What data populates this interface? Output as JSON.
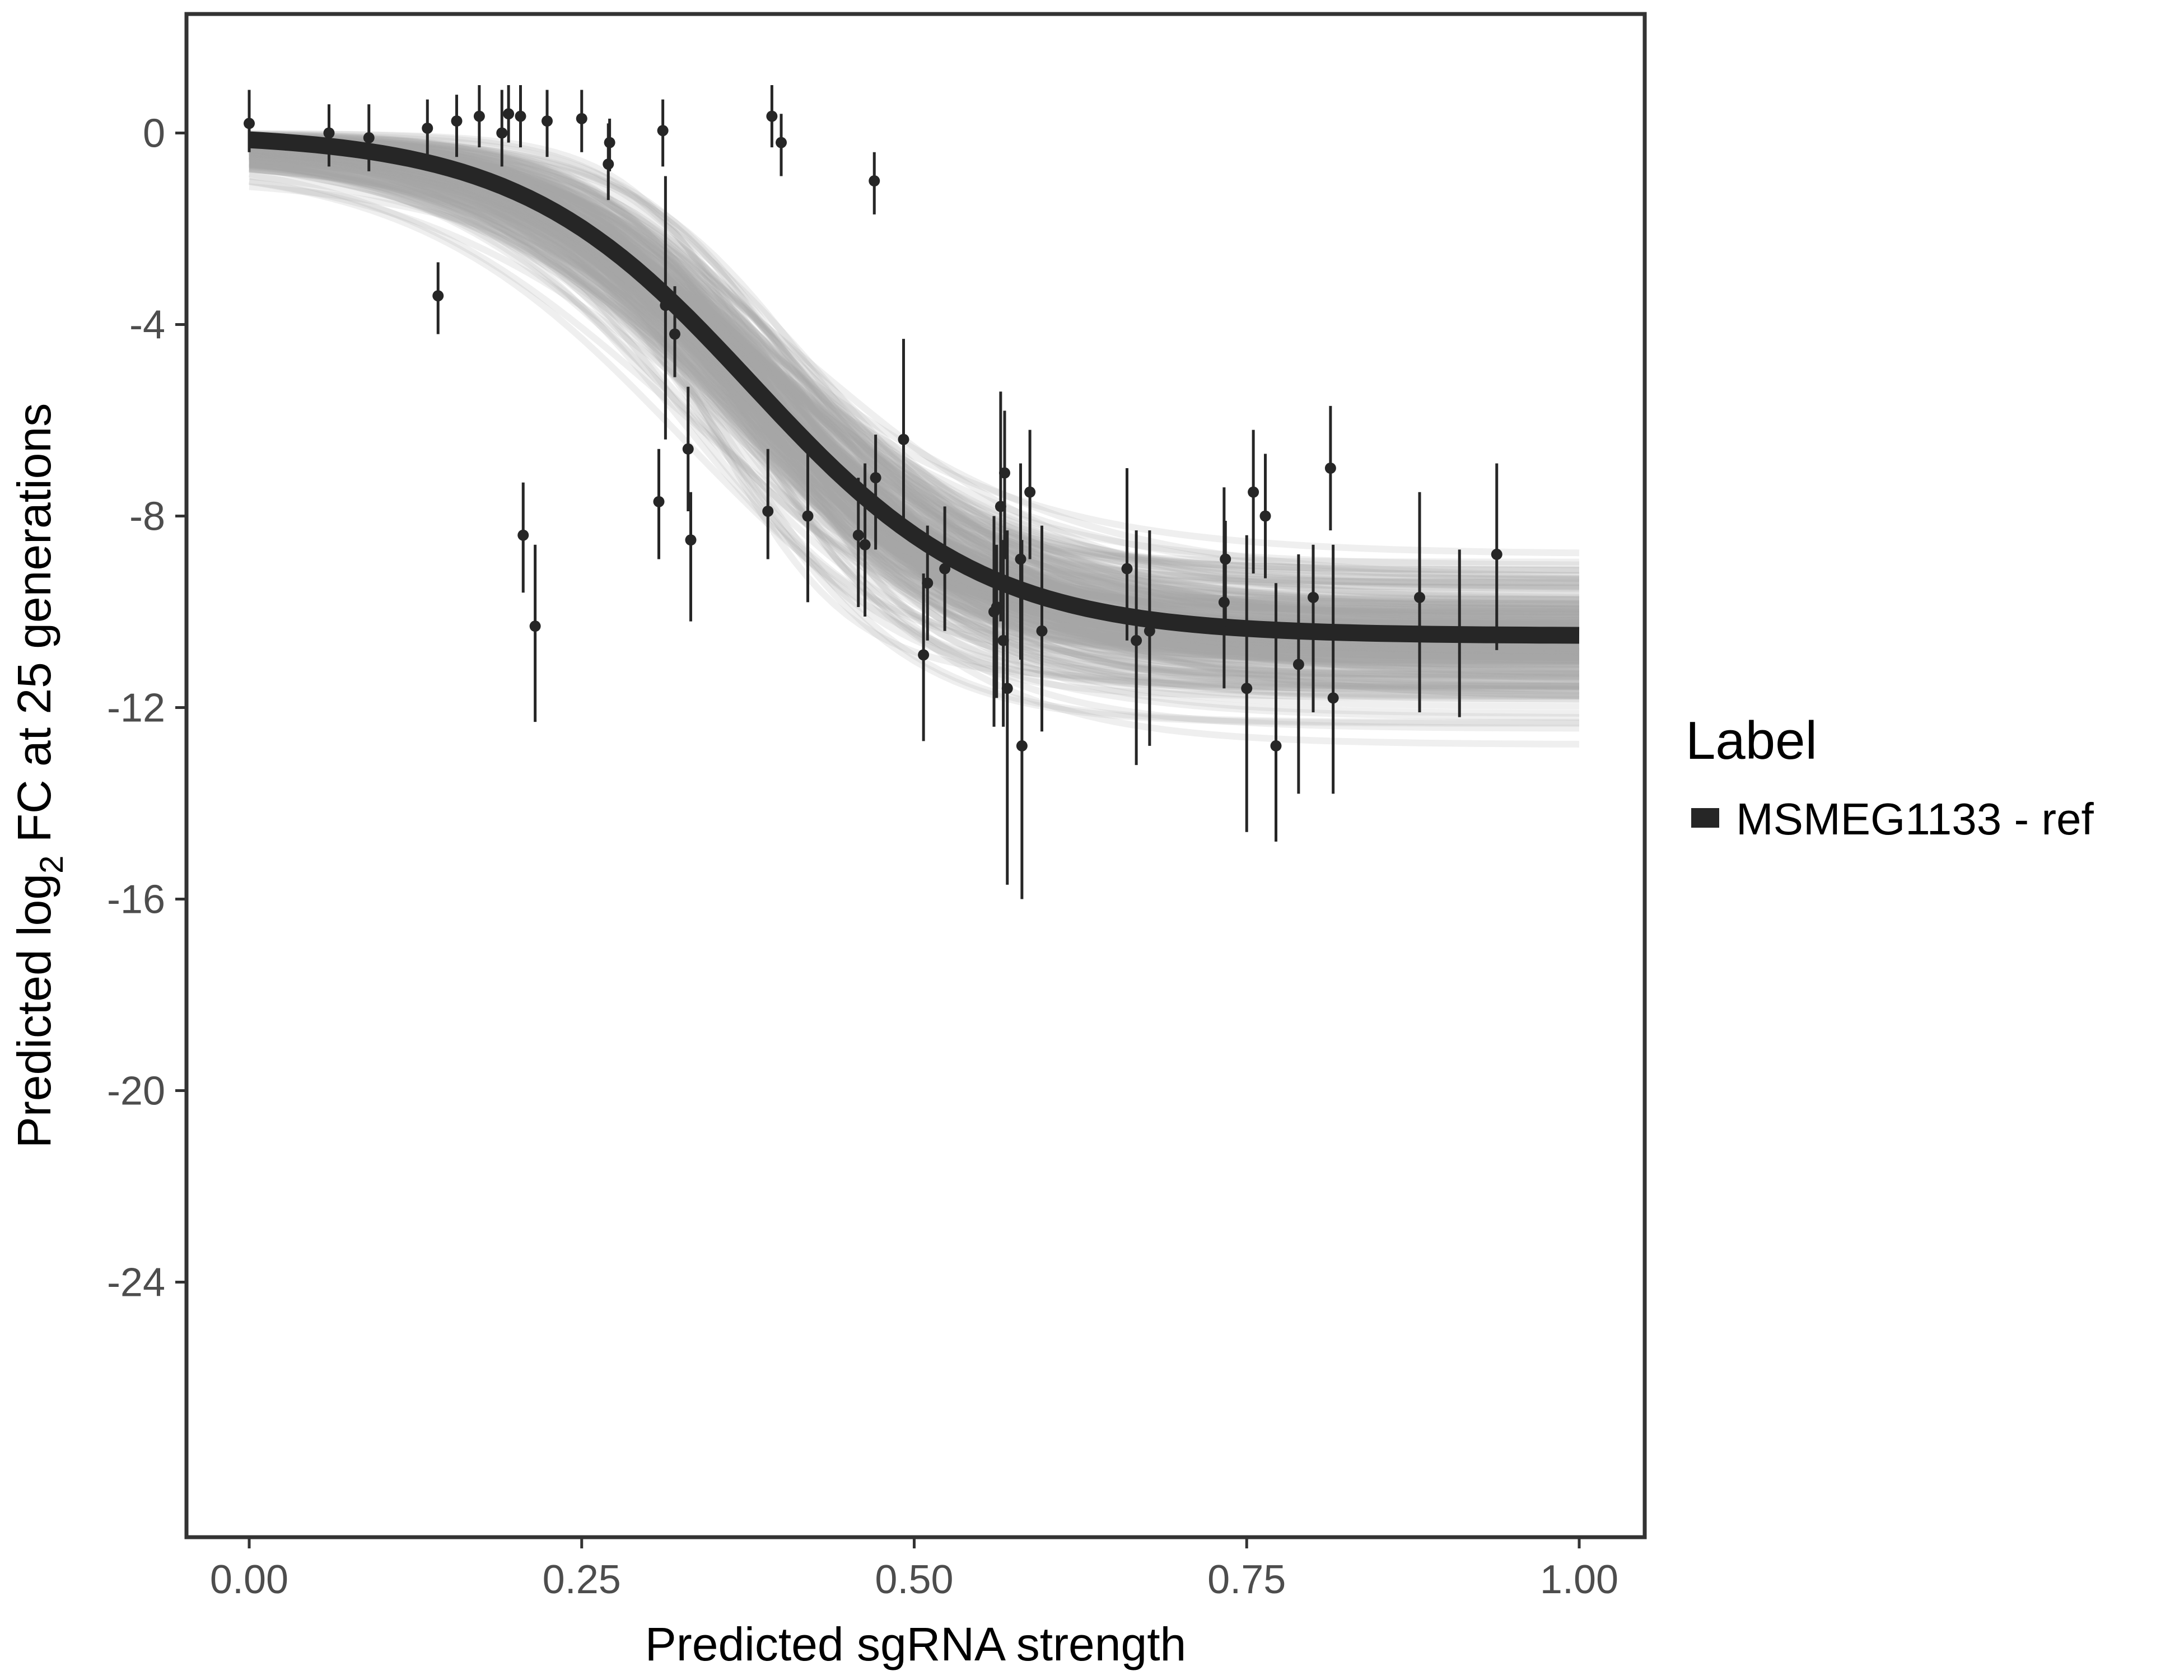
{
  "chart_data": {
    "type": "scatter",
    "title": "",
    "xlabel": "Predicted sgRNA strength",
    "ylabel": {
      "prefix": "Predicted  log",
      "subscript": "2",
      "suffix": " FC at 25 generations"
    },
    "xlim": [
      -0.1,
      1.1
    ],
    "ylim": [
      -29.3,
      2.5
    ],
    "x_ticks": [
      0,
      0.25,
      0.5,
      0.75,
      1
    ],
    "x_tick_labels": [
      "0.00",
      "0.25",
      "0.50",
      "0.75",
      "1.00"
    ],
    "y_ticks": [
      0,
      -4,
      -8,
      -12,
      -16,
      -20,
      -24
    ],
    "y_tick_labels": [
      "0",
      "-4",
      "-8",
      "-12",
      "-16",
      "-20",
      "-24"
    ],
    "grid": false,
    "legend": {
      "title": "Label",
      "placement": "right",
      "entries": [
        {
          "label": "MSMEG1133 - ref",
          "color": "#262626"
        }
      ]
    },
    "colors": {
      "fit": "#262626",
      "posterior": "#a9a9a9",
      "points": "#262626"
    },
    "fit_curve": {
      "model": "logistic",
      "bottom": -10.5,
      "midpoint": 0.378,
      "scale": 0.088,
      "x_range": [
        0,
        1
      ]
    },
    "points": [
      {
        "x": 0.0,
        "y": 0.2,
        "lo": -0.4,
        "hi": 0.9
      },
      {
        "x": 0.06,
        "y": 0.0,
        "lo": -0.7,
        "hi": 0.6
      },
      {
        "x": 0.09,
        "y": -0.1,
        "lo": -0.8,
        "hi": 0.6
      },
      {
        "x": 0.134,
        "y": 0.1,
        "lo": -0.5,
        "hi": 0.7
      },
      {
        "x": 0.142,
        "y": -3.4,
        "lo": -4.2,
        "hi": -2.7
      },
      {
        "x": 0.156,
        "y": 0.25,
        "lo": -0.5,
        "hi": 0.8
      },
      {
        "x": 0.173,
        "y": 0.35,
        "lo": -0.3,
        "hi": 1.0
      },
      {
        "x": 0.19,
        "y": 0.0,
        "lo": -0.7,
        "hi": 0.9
      },
      {
        "x": 0.195,
        "y": 0.4,
        "lo": -0.2,
        "hi": 1.0
      },
      {
        "x": 0.204,
        "y": 0.35,
        "lo": -0.3,
        "hi": 1.0
      },
      {
        "x": 0.206,
        "y": -8.4,
        "lo": -9.6,
        "hi": -7.3
      },
      {
        "x": 0.215,
        "y": -10.3,
        "lo": -12.3,
        "hi": -8.6
      },
      {
        "x": 0.224,
        "y": 0.25,
        "lo": -0.5,
        "hi": 0.9
      },
      {
        "x": 0.25,
        "y": 0.3,
        "lo": -0.4,
        "hi": 0.9
      },
      {
        "x": 0.27,
        "y": -0.65,
        "lo": -1.4,
        "hi": 0.2
      },
      {
        "x": 0.271,
        "y": -0.2,
        "lo": -0.8,
        "hi": 0.3
      },
      {
        "x": 0.308,
        "y": -7.7,
        "lo": -8.9,
        "hi": -6.6
      },
      {
        "x": 0.311,
        "y": 0.05,
        "lo": -0.7,
        "hi": 0.7
      },
      {
        "x": 0.313,
        "y": -3.6,
        "lo": -6.4,
        "hi": -0.9
      },
      {
        "x": 0.32,
        "y": -4.2,
        "lo": -5.1,
        "hi": -3.2
      },
      {
        "x": 0.33,
        "y": -6.6,
        "lo": -7.9,
        "hi": -5.3
      },
      {
        "x": 0.332,
        "y": -8.5,
        "lo": -10.2,
        "hi": -7.5
      },
      {
        "x": 0.39,
        "y": -7.9,
        "lo": -8.9,
        "hi": -6.6
      },
      {
        "x": 0.393,
        "y": 0.35,
        "lo": -0.3,
        "hi": 1.0
      },
      {
        "x": 0.4,
        "y": -0.2,
        "lo": -0.9,
        "hi": 0.4
      },
      {
        "x": 0.42,
        "y": -8.0,
        "lo": -9.8,
        "hi": -6.4
      },
      {
        "x": 0.458,
        "y": -8.4,
        "lo": -9.9,
        "hi": -7.2
      },
      {
        "x": 0.463,
        "y": -8.6,
        "lo": -10.1,
        "hi": -6.9
      },
      {
        "x": 0.47,
        "y": -1.0,
        "lo": -1.7,
        "hi": -0.4
      },
      {
        "x": 0.471,
        "y": -7.2,
        "lo": -8.7,
        "hi": -6.3
      },
      {
        "x": 0.492,
        "y": -6.4,
        "lo": -8.1,
        "hi": -4.3
      },
      {
        "x": 0.507,
        "y": -10.9,
        "lo": -12.7,
        "hi": -9.2
      },
      {
        "x": 0.51,
        "y": -9.4,
        "lo": -10.6,
        "hi": -8.2
      },
      {
        "x": 0.523,
        "y": -9.1,
        "lo": -10.4,
        "hi": -7.8
      },
      {
        "x": 0.56,
        "y": -10.0,
        "lo": -12.4,
        "hi": -8.0
      },
      {
        "x": 0.562,
        "y": -9.9,
        "lo": -11.8,
        "hi": -8.6
      },
      {
        "x": 0.565,
        "y": -7.8,
        "lo": -10.2,
        "hi": -5.4
      },
      {
        "x": 0.567,
        "y": -10.6,
        "lo": -12.4,
        "hi": -8.5
      },
      {
        "x": 0.568,
        "y": -7.1,
        "lo": -8.9,
        "hi": -5.8
      },
      {
        "x": 0.57,
        "y": -11.6,
        "lo": -15.7,
        "hi": -8.3
      },
      {
        "x": 0.58,
        "y": -8.9,
        "lo": -11.0,
        "hi": -6.9
      },
      {
        "x": 0.581,
        "y": -12.8,
        "lo": -16.0,
        "hi": -8.5
      },
      {
        "x": 0.587,
        "y": -7.5,
        "lo": -8.9,
        "hi": -6.2
      },
      {
        "x": 0.596,
        "y": -10.4,
        "lo": -12.5,
        "hi": -8.2
      },
      {
        "x": 0.66,
        "y": -9.1,
        "lo": -10.6,
        "hi": -7.0
      },
      {
        "x": 0.667,
        "y": -10.6,
        "lo": -13.2,
        "hi": -8.3
      },
      {
        "x": 0.677,
        "y": -10.4,
        "lo": -12.8,
        "hi": -8.3
      },
      {
        "x": 0.733,
        "y": -9.8,
        "lo": -11.6,
        "hi": -7.4
      },
      {
        "x": 0.734,
        "y": -8.9,
        "lo": -10.3,
        "hi": -8.1
      },
      {
        "x": 0.75,
        "y": -11.6,
        "lo": -14.6,
        "hi": -8.4
      },
      {
        "x": 0.755,
        "y": -7.5,
        "lo": -9.2,
        "hi": -6.2
      },
      {
        "x": 0.764,
        "y": -8.0,
        "lo": -9.3,
        "hi": -6.7
      },
      {
        "x": 0.772,
        "y": -12.8,
        "lo": -14.8,
        "hi": -9.4
      },
      {
        "x": 0.789,
        "y": -11.1,
        "lo": -13.8,
        "hi": -8.8
      },
      {
        "x": 0.8,
        "y": -9.7,
        "lo": -12.1,
        "hi": -8.6
      },
      {
        "x": 0.813,
        "y": -7.0,
        "lo": -8.3,
        "hi": -5.7
      },
      {
        "x": 0.815,
        "y": -11.8,
        "lo": -13.8,
        "hi": -8.6
      },
      {
        "x": 0.88,
        "y": -9.7,
        "lo": -12.1,
        "hi": -7.5
      },
      {
        "x": 0.91,
        "y": -10.5,
        "lo": -12.2,
        "hi": -8.7
      },
      {
        "x": 0.938,
        "y": -8.8,
        "lo": -10.8,
        "hi": -6.9
      }
    ]
  }
}
